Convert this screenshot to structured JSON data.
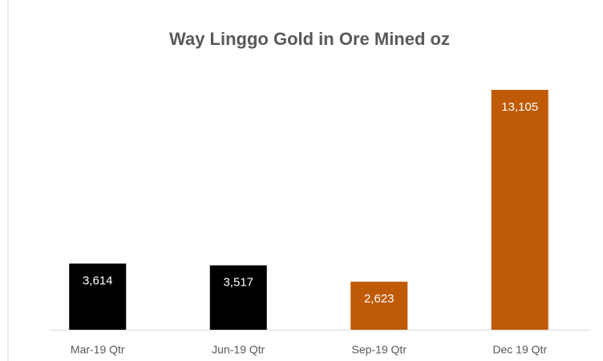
{
  "chart_data": {
    "type": "bar",
    "title": "Way Linggo Gold in Ore Mined oz",
    "categories": [
      "Mar-19 Qtr",
      "Jun-19 Qtr",
      "Sep-19 Qtr",
      "Dec 19 Qtr"
    ],
    "values": [
      3614,
      3517,
      2623,
      13105
    ],
    "value_labels": [
      "3,614",
      "3,517",
      "2,623",
      "13,105"
    ],
    "colors": [
      "#000000",
      "#000000",
      "#bf5a07",
      "#bf5a07"
    ]
  }
}
